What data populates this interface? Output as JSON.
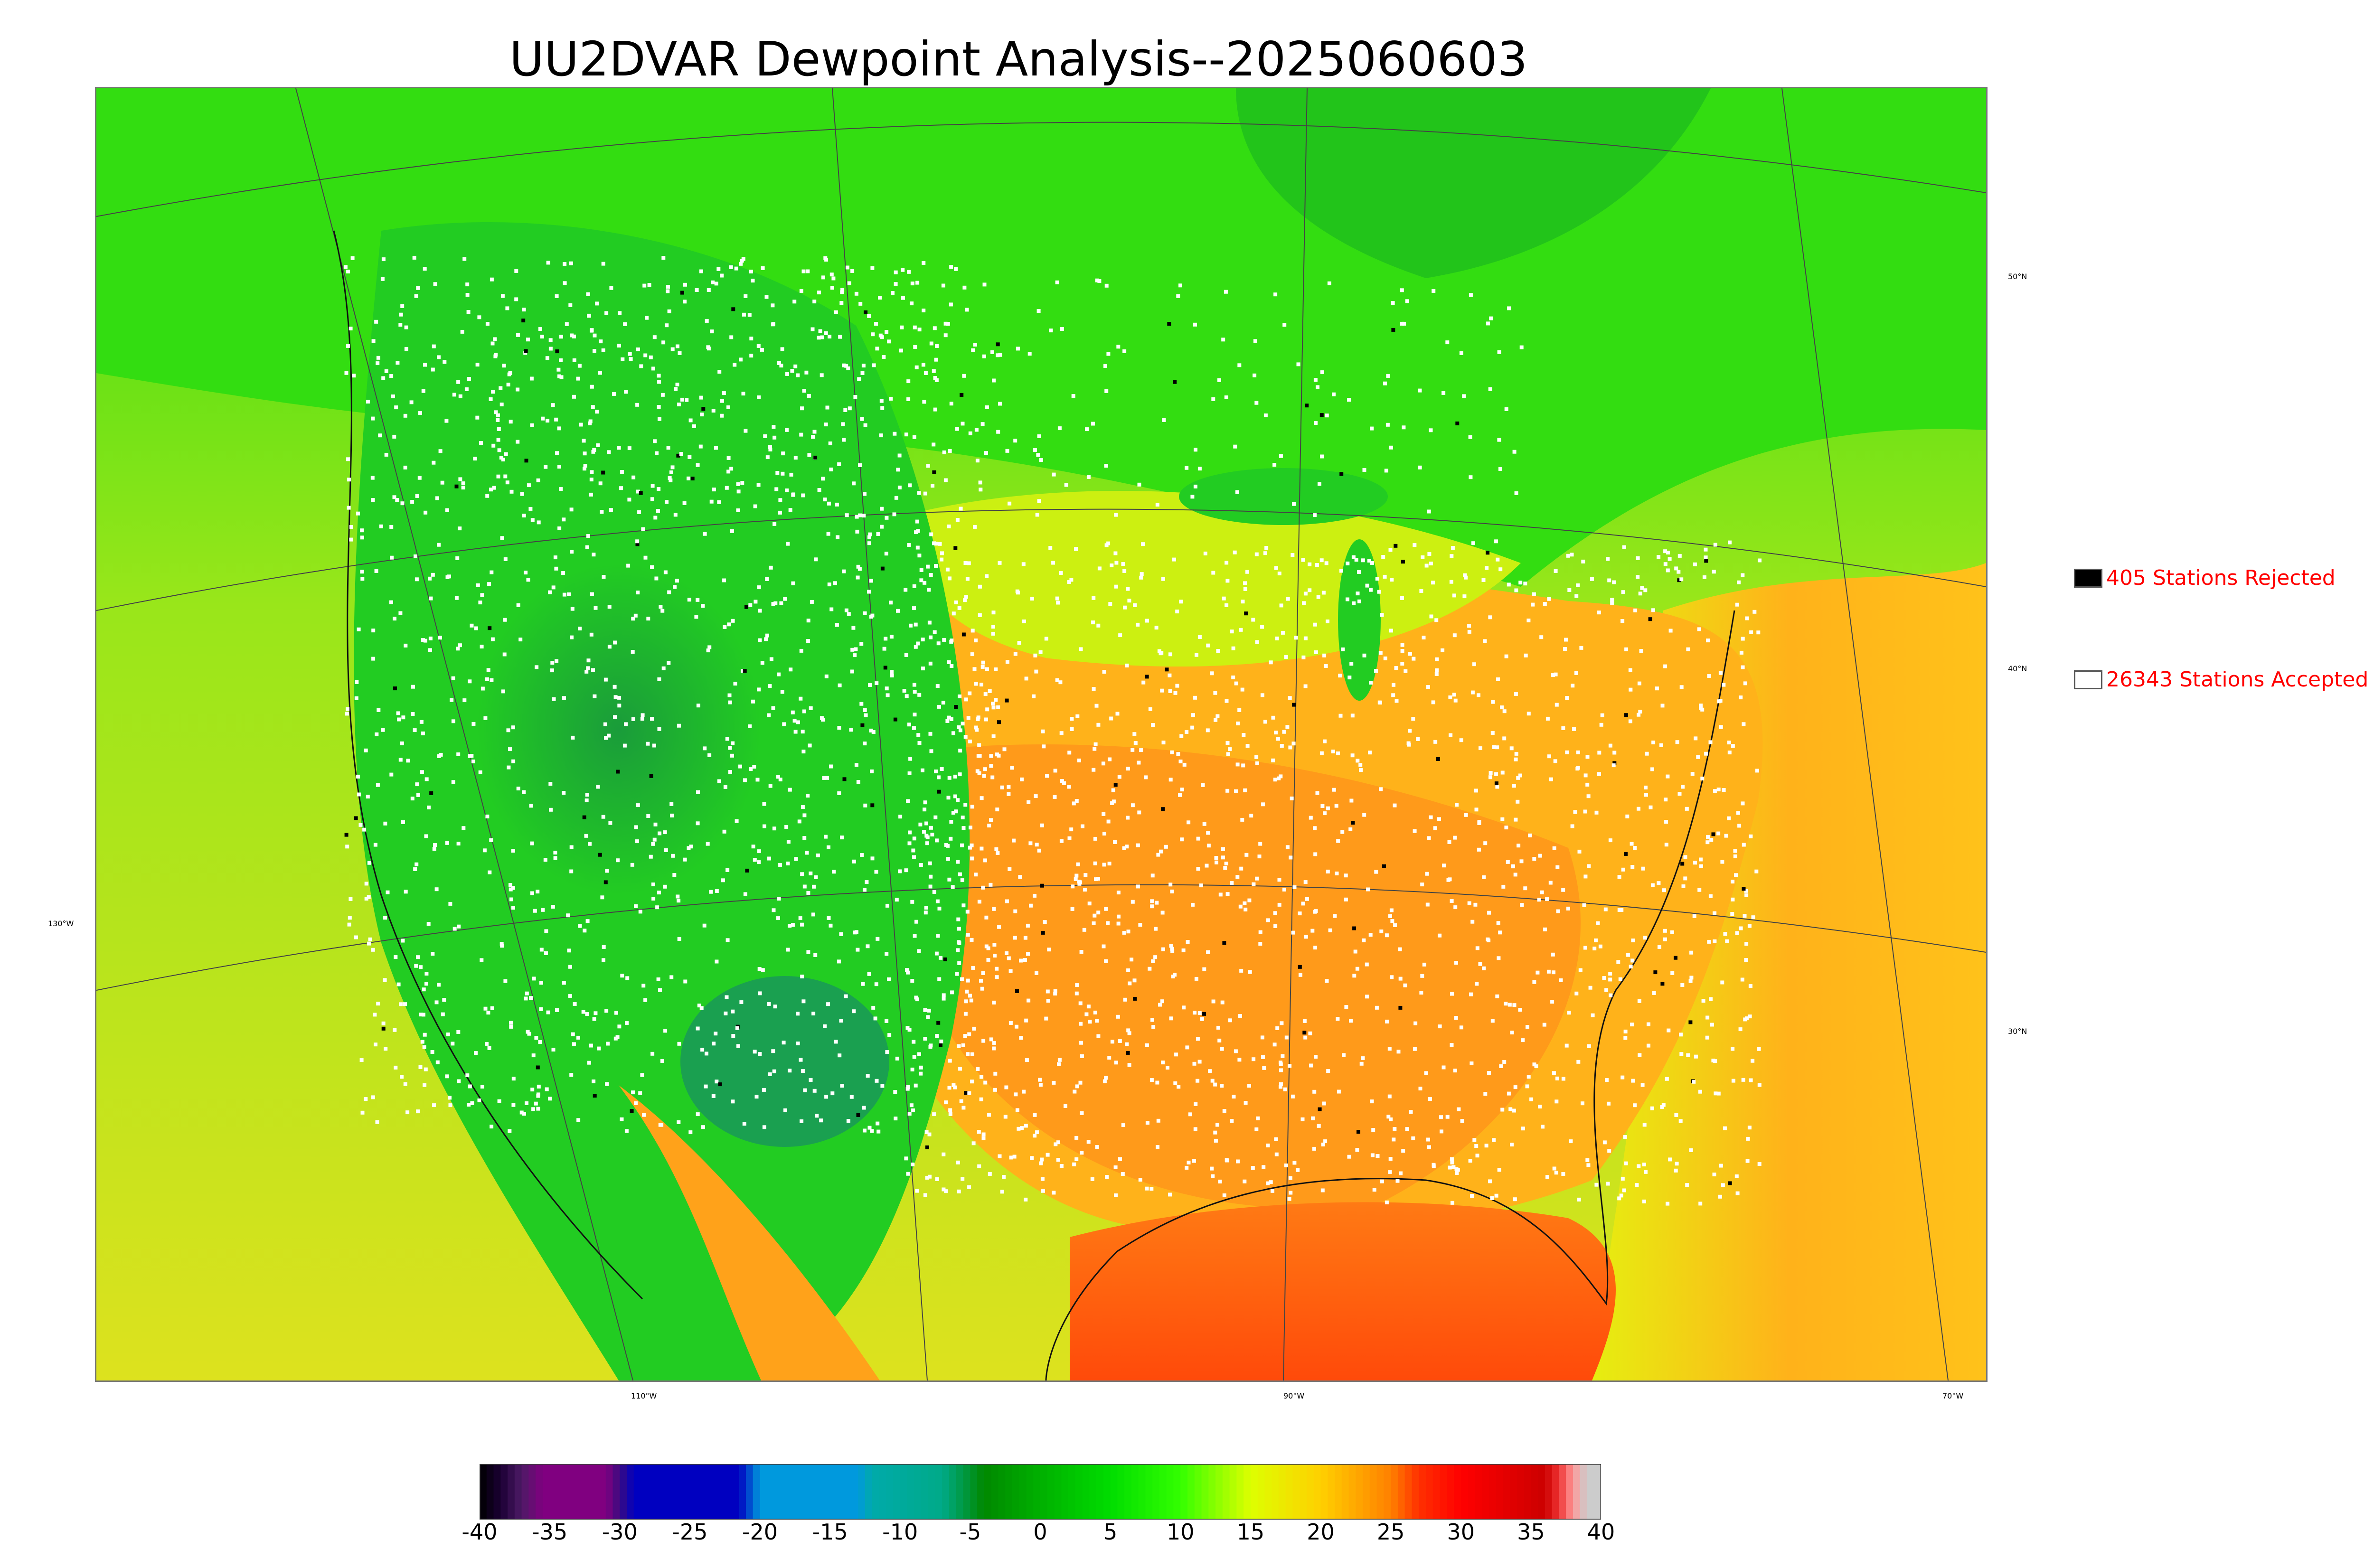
{
  "title": "UU2DVAR Dewpoint Analysis--2025060603",
  "map": {
    "latitude_labels": [
      "50°N",
      "40°N",
      "30°N"
    ],
    "longitude_labels": [
      "130°W",
      "110°W",
      "90°W",
      "70°W"
    ],
    "colors": {
      "dry_interior": "#22cc22",
      "canada": "#33dd11",
      "pacific": "#c8e61e",
      "gulf": "#ff5a10",
      "atlantic": "#ffb21a",
      "southeast": "#ff9a1a",
      "accepted_station": "#ffffff",
      "rejected_station": "#000000"
    }
  },
  "legend": {
    "rejected_label": "405 Stations Rejected",
    "accepted_label": "26343 Stations Accepted"
  },
  "colorbar": {
    "ticks": [
      "-40",
      "-35",
      "-30",
      "-25",
      "-20",
      "-15",
      "-10",
      "-5",
      "0",
      "5",
      "10",
      "15",
      "20",
      "25",
      "30",
      "35",
      "40"
    ],
    "min": -40,
    "max": 40,
    "stops": [
      {
        "v": -40,
        "c": "#000000"
      },
      {
        "v": -38.5,
        "c": "#1a0033"
      },
      {
        "v": -37,
        "c": "#4d1a66"
      },
      {
        "v": -35.5,
        "c": "#800080"
      },
      {
        "v": -31,
        "c": "#800080"
      },
      {
        "v": -30,
        "c": "#3a0a80"
      },
      {
        "v": -29,
        "c": "#0000c0"
      },
      {
        "v": -21.5,
        "c": "#0000c0"
      },
      {
        "v": -20,
        "c": "#0099dd"
      },
      {
        "v": -13,
        "c": "#0099dd"
      },
      {
        "v": -12,
        "c": "#00aaaa"
      },
      {
        "v": -7,
        "c": "#00aa88"
      },
      {
        "v": -4,
        "c": "#008800"
      },
      {
        "v": 0,
        "c": "#00b000"
      },
      {
        "v": 5,
        "c": "#00dd00"
      },
      {
        "v": 10,
        "c": "#33ff00"
      },
      {
        "v": 15,
        "c": "#ddff00"
      },
      {
        "v": 20,
        "c": "#ffd000"
      },
      {
        "v": 25,
        "c": "#ff8000"
      },
      {
        "v": 27,
        "c": "#ff3000"
      },
      {
        "v": 30,
        "c": "#ff0000"
      },
      {
        "v": 34,
        "c": "#dd0000"
      },
      {
        "v": 36,
        "c": "#cc0000"
      },
      {
        "v": 37,
        "c": "#ee3333"
      },
      {
        "v": 38,
        "c": "#ff9999"
      },
      {
        "v": 39,
        "c": "#cccccc"
      },
      {
        "v": 40,
        "c": "#cccccc"
      }
    ]
  }
}
